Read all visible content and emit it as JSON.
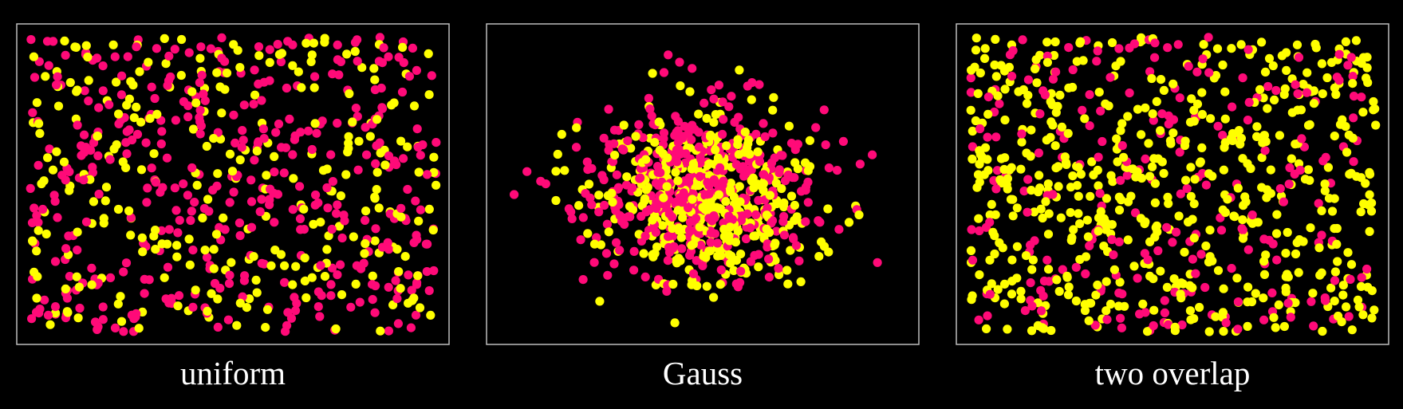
{
  "colors": {
    "background": "#000000",
    "frame": "#bdbdbd",
    "series_a": "#ff0a78",
    "series_b": "#ffff00",
    "caption": "#ffffff"
  },
  "chart_data": [
    {
      "type": "scatter",
      "title": "uniform",
      "distribution": "uniform over the full panel",
      "xlim": [
        0,
        1
      ],
      "ylim": [
        0,
        1
      ],
      "grid": false,
      "axes_ticks": false,
      "legend": "none",
      "series": [
        {
          "color": "#ff0a78",
          "count": 420,
          "center": [
            0.5,
            0.5
          ],
          "spread": "uniform",
          "seed": 11
        },
        {
          "color": "#ffff00",
          "count": 280,
          "center": [
            0.5,
            0.5
          ],
          "spread": "uniform",
          "seed": 23
        }
      ]
    },
    {
      "type": "scatter",
      "title": "Gauss",
      "distribution": "gaussian clusters near the panel center",
      "xlim": [
        0,
        1
      ],
      "ylim": [
        0,
        1
      ],
      "grid": false,
      "axes_ticks": false,
      "legend": "none",
      "series": [
        {
          "color": "#ffff00",
          "count": 380,
          "center": [
            0.52,
            0.45
          ],
          "sd": [
            0.13,
            0.15
          ],
          "seed": 37
        },
        {
          "color": "#ff0a78",
          "count": 430,
          "center": [
            0.5,
            0.47
          ],
          "sd": [
            0.15,
            0.16
          ],
          "seed": 41
        }
      ]
    },
    {
      "type": "scatter",
      "title": "two overlap",
      "distribution": "two overlapping uniform populations",
      "xlim": [
        0,
        1
      ],
      "ylim": [
        0,
        1
      ],
      "grid": false,
      "axes_ticks": false,
      "legend": "none",
      "series": [
        {
          "color": "#ff0a78",
          "count": 240,
          "center": [
            0.45,
            0.5
          ],
          "spread": "uniform",
          "seed": 53
        },
        {
          "color": "#ffff00",
          "count": 560,
          "center": [
            0.55,
            0.5
          ],
          "spread": "uniform",
          "seed": 67
        }
      ]
    }
  ]
}
